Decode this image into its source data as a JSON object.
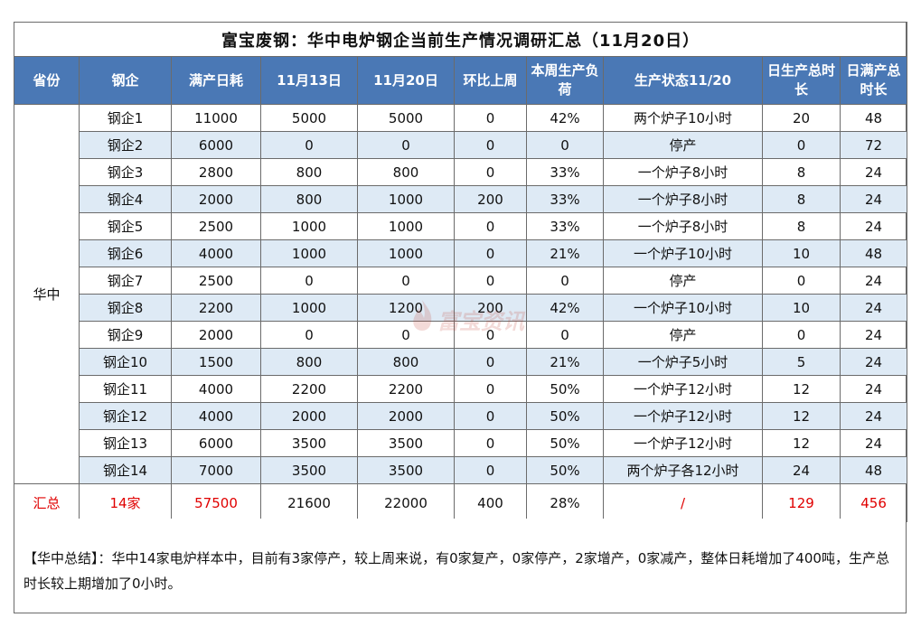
{
  "title": "富宝废钢：华中电炉钢企当前生产情况调研汇总（11月20日）",
  "headers": [
    "省份",
    "钢企",
    "满产日耗",
    "11月13日",
    "11月20日",
    "环比上周",
    "本周生产负荷",
    "生产状态11/20",
    "日生产总时长",
    "日满产总时长"
  ],
  "region": "华中",
  "rows": [
    [
      "钢企1",
      "11000",
      "5000",
      "5000",
      "0",
      "42%",
      "两个炉子10小时",
      "20",
      "48"
    ],
    [
      "钢企2",
      "6000",
      "0",
      "0",
      "0",
      "0",
      "停产",
      "0",
      "72"
    ],
    [
      "钢企3",
      "2800",
      "800",
      "800",
      "0",
      "33%",
      "一个炉子8小时",
      "8",
      "24"
    ],
    [
      "钢企4",
      "2000",
      "800",
      "1000",
      "200",
      "33%",
      "一个炉子8小时",
      "8",
      "24"
    ],
    [
      "钢企5",
      "2500",
      "1000",
      "1000",
      "0",
      "33%",
      "一个炉子8小时",
      "8",
      "24"
    ],
    [
      "钢企6",
      "4000",
      "1000",
      "1000",
      "0",
      "21%",
      "一个炉子10小时",
      "10",
      "48"
    ],
    [
      "钢企7",
      "2500",
      "0",
      "0",
      "0",
      "0",
      "停产",
      "0",
      "24"
    ],
    [
      "钢企8",
      "2200",
      "1000",
      "1200",
      "200",
      "42%",
      "一个炉子10小时",
      "10",
      "24"
    ],
    [
      "钢企9",
      "2000",
      "0",
      "0",
      "0",
      "0",
      "停产",
      "0",
      "24"
    ],
    [
      "钢企10",
      "1500",
      "800",
      "800",
      "0",
      "21%",
      "一个炉子5小时",
      "5",
      "24"
    ],
    [
      "钢企11",
      "4000",
      "2200",
      "2200",
      "0",
      "50%",
      "一个炉子12小时",
      "12",
      "24"
    ],
    [
      "钢企12",
      "4000",
      "2000",
      "2000",
      "0",
      "50%",
      "一个炉子12小时",
      "12",
      "24"
    ],
    [
      "钢企13",
      "6000",
      "3500",
      "3500",
      "0",
      "50%",
      "一个炉子12小时",
      "12",
      "24"
    ],
    [
      "钢企14",
      "7000",
      "3500",
      "3500",
      "0",
      "50%",
      "两个炉子各12小时",
      "24",
      "48"
    ]
  ],
  "total": [
    "汇总",
    "14家",
    "57500",
    "21600",
    "22000",
    "400",
    "28%",
    "/",
    "129",
    "456"
  ],
  "summary": "【华中总结】：华中14家电炉样本中，目前有3家停产，较上周来说，有0家复产，0家停产，2家增产，0家减产，整体日耗增加了400吨，生产总时长较上期增加了0小时。",
  "watermark": "富宝资讯",
  "colors": {
    "header_bg": "#4a78b5",
    "alt_row": "#deeaf5",
    "total_red": "#e00000"
  }
}
